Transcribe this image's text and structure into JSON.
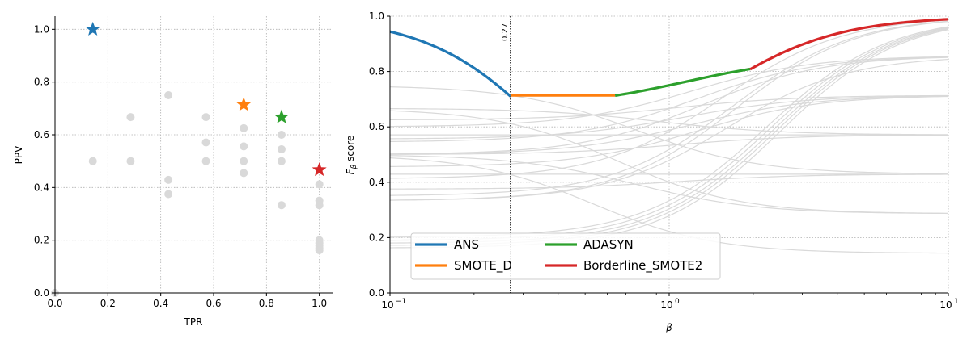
{
  "chart_data": [
    {
      "type": "scatter",
      "xlabel": "TPR",
      "ylabel": "PPV",
      "xlim": [
        0,
        1.05
      ],
      "ylim": [
        0,
        1.05
      ],
      "xticks": [
        "0.0",
        "0.2",
        "0.4",
        "0.6",
        "0.8",
        "1.0"
      ],
      "yticks": [
        "0.0",
        "0.2",
        "0.4",
        "0.6",
        "0.8",
        "1.0"
      ],
      "grid": true,
      "points": [
        [
          0.0,
          0.0
        ],
        [
          0.143,
          0.5
        ],
        [
          0.286,
          0.667
        ],
        [
          0.286,
          0.5
        ],
        [
          0.429,
          0.75
        ],
        [
          0.429,
          0.429
        ],
        [
          0.429,
          0.375
        ],
        [
          0.571,
          0.667
        ],
        [
          0.571,
          0.571
        ],
        [
          0.571,
          0.5
        ],
        [
          0.714,
          0.625
        ],
        [
          0.714,
          0.556
        ],
        [
          0.714,
          0.5
        ],
        [
          0.714,
          0.455
        ],
        [
          0.857,
          0.6
        ],
        [
          0.857,
          0.545
        ],
        [
          0.857,
          0.5
        ],
        [
          0.857,
          0.333
        ],
        [
          1.0,
          0.412
        ],
        [
          1.0,
          0.35
        ],
        [
          1.0,
          0.333
        ],
        [
          1.0,
          0.2
        ],
        [
          1.0,
          0.189
        ],
        [
          1.0,
          0.179
        ],
        [
          1.0,
          0.171
        ],
        [
          1.0,
          0.162
        ]
      ],
      "highlighted": [
        {
          "color": "#1f77b4",
          "x": 0.143,
          "y": 1.0
        },
        {
          "color": "#ff7f0e",
          "x": 0.714,
          "y": 0.714
        },
        {
          "color": "#2ca02c",
          "x": 0.857,
          "y": 0.667
        },
        {
          "color": "#d62728",
          "x": 1.0,
          "y": 0.467
        }
      ]
    },
    {
      "type": "line",
      "xlabel": "β",
      "ylabel": "Fβ score",
      "xscale": "log",
      "xlim": [
        0.1,
        10
      ],
      "ylim": [
        0,
        1.0
      ],
      "xticks": [
        "10",
        "10",
        "10"
      ],
      "xtick_exponents": [
        "−1",
        "0",
        "1"
      ],
      "yticks": [
        "0.0",
        "0.2",
        "0.4",
        "0.6",
        "0.8",
        "1.0"
      ],
      "grid": true,
      "vline": {
        "x": 0.27,
        "label": "0.27"
      },
      "legend_position": "lower-left",
      "series": [
        {
          "name": "ANS",
          "color": "#1f77b4",
          "tpr": 0.143,
          "ppv": 1.0,
          "from": 0.1,
          "to": 0.27
        },
        {
          "name": "SMOTE_D",
          "color": "#ff7f0e",
          "tpr": 0.714,
          "ppv": 0.714,
          "from": 0.27,
          "to": 0.64
        },
        {
          "name": "ADASYN",
          "color": "#2ca02c",
          "tpr": 0.857,
          "ppv": 0.667,
          "from": 0.64,
          "to": 1.95
        },
        {
          "name": "Borderline_SMOTE2",
          "color": "#d62728",
          "tpr": 1.0,
          "ppv": 0.467,
          "from": 1.95,
          "to": 10
        }
      ],
      "background_curves_from": "points of panel 1"
    }
  ]
}
